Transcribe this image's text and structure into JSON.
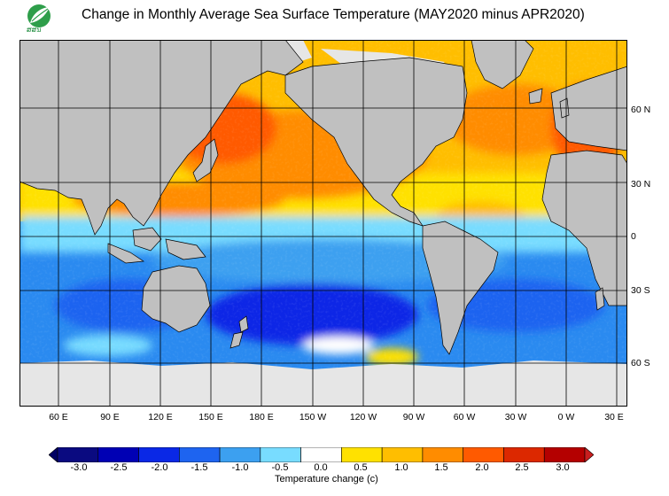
{
  "title": "Change in Monthly Average Sea Surface Temperature (MAY2020 minus APR2020)",
  "logo": {
    "text": "ສສນ",
    "icon": "leaf-logo-icon"
  },
  "map": {
    "projection": "cylindrical global, centered on Pacific",
    "lon_labels": [
      "60 E",
      "90 E",
      "120 E",
      "150 E",
      "180 E",
      "150 W",
      "120 W",
      "90 W",
      "60 W",
      "30 W",
      "0 W",
      "30 E"
    ],
    "lat_labels": [
      "60 N",
      "30 N",
      "0",
      "30 S",
      "60 S"
    ],
    "land_color": "#c0c0c0",
    "ice_color": "#e6e6e6",
    "grid_color": "#000000"
  },
  "colorbar": {
    "label": "Temperature change  (c)",
    "ticks": [
      "-3.0",
      "-2.5",
      "-2.0",
      "-1.5",
      "-1.0",
      "-0.5",
      "0.0",
      "0.5",
      "1.0",
      "1.5",
      "2.0",
      "2.5",
      "3.0"
    ],
    "colors": [
      "#0a0a80",
      "#0000b4",
      "#0a28e6",
      "#1e64f0",
      "#3ca0f0",
      "#78dcff",
      "#ffffff",
      "#ffe100",
      "#ffbe00",
      "#ff8c00",
      "#ff5a00",
      "#dc2800",
      "#b40000"
    ],
    "low_color": "#000064",
    "high_color": "#c81e1e"
  }
}
